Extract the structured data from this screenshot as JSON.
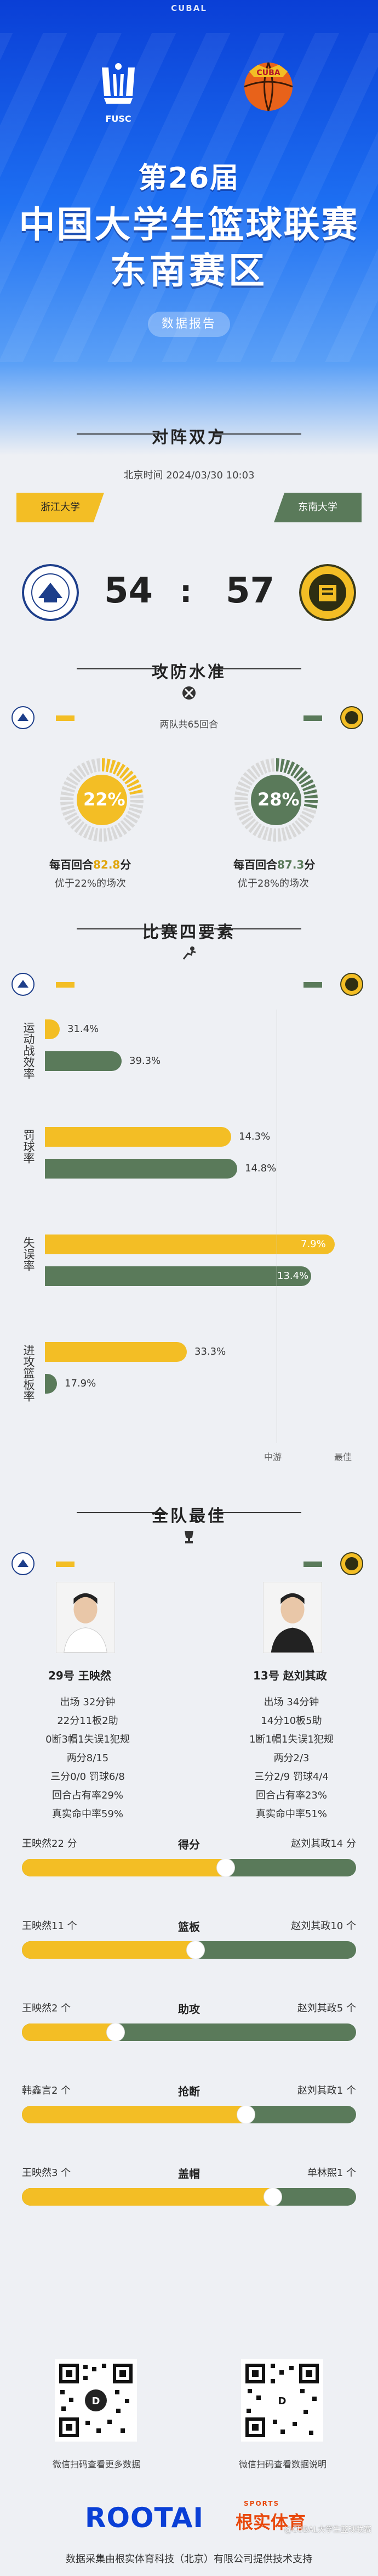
{
  "header": {
    "brand_top": "CUBAL",
    "fusc_label": "FUSC",
    "cuba_label": "CUBA",
    "edition": "第26届",
    "title": "中国大学生篮球联赛",
    "region": "东南赛区",
    "report_label": "数据报告"
  },
  "matchup": {
    "section_title": "对阵双方",
    "time": "北京时间 2024/03/30 10:03",
    "home": {
      "name": "浙江大学",
      "score": "54"
    },
    "away": {
      "name": "东南大学",
      "score": "57"
    },
    "score_sep": ":"
  },
  "offdef": {
    "section_title": "攻防水准",
    "possessions": "两队共65回合",
    "home": {
      "percent": "22%",
      "pp_prefix": "每百回合",
      "pp_value": "82.8",
      "pp_suffix": "分",
      "note": "优于22%的场次",
      "ring_fraction": 0.22
    },
    "away": {
      "percent": "28%",
      "pp_prefix": "每百回合",
      "pp_value": "87.3",
      "pp_suffix": "分",
      "note": "优于28%的场次",
      "ring_fraction": 0.28
    }
  },
  "four_factors": {
    "section_title": "比赛四要素",
    "rows": [
      {
        "label": "运动战效率",
        "home": "31.4%",
        "away": "39.3%",
        "home_frac": 0.05,
        "away_frac": 0.26
      },
      {
        "label": "罚球率",
        "home": "14.3%",
        "away": "14.8%",
        "home_frac": 0.63,
        "away_frac": 0.65
      },
      {
        "label": "失误率",
        "home": "7.9%",
        "away": "13.4%",
        "home_frac": 0.98,
        "away_frac": 0.9
      },
      {
        "label": "进攻篮板率",
        "home": "33.3%",
        "away": "17.9%",
        "home_frac": 0.48,
        "away_frac": 0.04
      }
    ],
    "axis_mid": "中游",
    "axis_right": "最佳"
  },
  "allstar": {
    "section_title": "全队最佳",
    "home_player": {
      "name": "29号 王映然",
      "lines": [
        "出场 32分钟",
        "22分11板2助",
        "0断3帽1失误1犯规",
        "两分8/15",
        "三分0/0 罚球6/8",
        "回合占有率29%",
        "真实命中率59%"
      ]
    },
    "away_player": {
      "name": "13号 赵刘其政",
      "lines": [
        "出场 34分钟",
        "14分10板5助",
        "1断1帽1失误1犯规",
        "两分2/3",
        "三分2/9 罚球4/4",
        "回合占有率23%",
        "真实命中率51%"
      ]
    },
    "compare": [
      {
        "left": "王映然22 分",
        "center": "得分",
        "right": "赵刘其政14 分",
        "fraction": 0.61
      },
      {
        "left": "王映然11 个",
        "center": "篮板",
        "right": "赵刘其政10 个",
        "fraction": 0.52
      },
      {
        "left": "王映然2 个",
        "center": "助攻",
        "right": "赵刘其政5 个",
        "fraction": 0.28
      },
      {
        "left": "韩鑫言2 个",
        "center": "抢断",
        "right": "赵刘其政1 个",
        "fraction": 0.67
      },
      {
        "left": "王映然3 个",
        "center": "盖帽",
        "right": "单林熙1 个",
        "fraction": 0.75
      }
    ]
  },
  "footer": {
    "qr_left_caption": "微信扫码查看更多数据",
    "qr_right_caption": "微信扫码查看数据说明",
    "brand": "ROOTAI",
    "brand_cn": "根实体育",
    "brand_sports": "SPORTS",
    "note": "数据采集由根实体育科技（北京）有限公司提供技术支持",
    "watermark": "@CUBAL大学生篮球联赛"
  },
  "colors": {
    "home": "#f3be25",
    "away": "#5a7a5a",
    "blue": "#0a3fd6"
  }
}
